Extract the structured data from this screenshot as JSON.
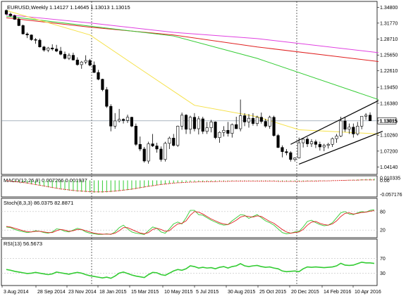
{
  "header": {
    "symbol": "EURUSD,Weekly",
    "ohlc": "1.14127 1.14645 1.13013 1.13015"
  },
  "colors": {
    "bull": "#000000",
    "bear": "#000000",
    "bull_fill": "#ffffff",
    "bear_fill": "#000000",
    "ma_yellow": "#f5e14a",
    "ma_green": "#33cc33",
    "ma_red": "#e02020",
    "ma_magenta": "#e040e0",
    "macd_hist": "#33cc33",
    "macd_signal": "#e02020",
    "stoch_main": "#33cc33",
    "stoch_signal": "#e02020",
    "rsi": "#33cc33",
    "grid": "#c0c0c0",
    "current_price_line": "#7a8a9a"
  },
  "chart_data": [
    {
      "type": "candlestick",
      "title": "EURUSD,Weekly",
      "x_tick_labels": [
        "3 Aug 2014",
        "28 Sep 2014",
        "23 Nov 2014",
        "18 Jan 2015",
        "15 Mar 2015",
        "10 May 2015",
        "5 Jul 2015",
        "30 Aug 2015",
        "25 Oct 2015",
        "20 Dec 2015",
        "14 Feb 2016",
        "10 Apr 2016"
      ],
      "y_tick_labels": [
        "1.34800",
        "1.31770",
        "1.28710",
        "1.25650",
        "1.22610",
        "1.19450",
        "1.16380",
        "1.13015",
        "1.10260",
        "1.07200",
        "1.04140"
      ],
      "current_price": 1.13015,
      "ylim": [
        1.03,
        1.354
      ],
      "candles": [
        [
          1.342,
          1.344,
          1.333,
          1.335
        ],
        [
          1.335,
          1.338,
          1.33,
          1.332
        ],
        [
          1.332,
          1.334,
          1.324,
          1.325
        ],
        [
          1.325,
          1.328,
          1.312,
          1.313
        ],
        [
          1.313,
          1.315,
          1.296,
          1.297
        ],
        [
          1.297,
          1.3,
          1.289,
          1.295
        ],
        [
          1.295,
          1.296,
          1.284,
          1.286
        ],
        [
          1.286,
          1.289,
          1.278,
          1.285
        ],
        [
          1.285,
          1.288,
          1.271,
          1.272
        ],
        [
          1.272,
          1.274,
          1.263,
          1.266
        ],
        [
          1.266,
          1.272,
          1.262,
          1.27
        ],
        [
          1.27,
          1.277,
          1.265,
          1.268
        ],
        [
          1.268,
          1.276,
          1.262,
          1.264
        ],
        [
          1.264,
          1.272,
          1.256,
          1.258
        ],
        [
          1.258,
          1.263,
          1.248,
          1.25
        ],
        [
          1.25,
          1.26,
          1.247,
          1.256
        ],
        [
          1.256,
          1.261,
          1.246,
          1.247
        ],
        [
          1.247,
          1.252,
          1.236,
          1.238
        ],
        [
          1.238,
          1.245,
          1.23,
          1.243
        ],
        [
          1.243,
          1.256,
          1.239,
          1.246
        ],
        [
          1.246,
          1.249,
          1.235,
          1.237
        ],
        [
          1.237,
          1.244,
          1.222,
          1.223
        ],
        [
          1.223,
          1.228,
          1.208,
          1.21
        ],
        [
          1.21,
          1.211,
          1.187,
          1.19
        ],
        [
          1.19,
          1.195,
          1.155,
          1.158
        ],
        [
          1.158,
          1.162,
          1.11,
          1.12
        ],
        [
          1.12,
          1.145,
          1.115,
          1.13
        ],
        [
          1.13,
          1.153,
          1.127,
          1.133
        ],
        [
          1.133,
          1.135,
          1.125,
          1.131
        ],
        [
          1.131,
          1.142,
          1.126,
          1.137
        ],
        [
          1.137,
          1.138,
          1.118,
          1.12
        ],
        [
          1.12,
          1.125,
          1.082,
          1.085
        ],
        [
          1.085,
          1.1,
          1.072,
          1.076
        ],
        [
          1.076,
          1.08,
          1.05,
          1.053
        ],
        [
          1.053,
          1.09,
          1.048,
          1.086
        ],
        [
          1.086,
          1.105,
          1.08,
          1.082
        ],
        [
          1.082,
          1.088,
          1.069,
          1.076
        ],
        [
          1.076,
          1.081,
          1.052,
          1.056
        ],
        [
          1.056,
          1.09,
          1.052,
          1.087
        ],
        [
          1.087,
          1.1,
          1.076,
          1.097
        ],
        [
          1.097,
          1.105,
          1.081,
          1.083
        ],
        [
          1.083,
          1.121,
          1.08,
          1.12
        ],
        [
          1.12,
          1.146,
          1.113,
          1.141
        ],
        [
          1.141,
          1.143,
          1.105,
          1.114
        ],
        [
          1.114,
          1.14,
          1.105,
          1.137
        ],
        [
          1.137,
          1.145,
          1.11,
          1.115
        ],
        [
          1.115,
          1.139,
          1.104,
          1.134
        ],
        [
          1.134,
          1.138,
          1.105,
          1.11
        ],
        [
          1.11,
          1.128,
          1.105,
          1.117
        ],
        [
          1.117,
          1.132,
          1.108,
          1.128
        ],
        [
          1.128,
          1.129,
          1.095,
          1.098
        ],
        [
          1.098,
          1.11,
          1.088,
          1.108
        ],
        [
          1.108,
          1.12,
          1.1,
          1.112
        ],
        [
          1.112,
          1.128,
          1.1,
          1.106
        ],
        [
          1.106,
          1.125,
          1.098,
          1.123
        ],
        [
          1.123,
          1.138,
          1.115,
          1.115
        ],
        [
          1.115,
          1.171,
          1.11,
          1.14
        ],
        [
          1.14,
          1.145,
          1.12,
          1.128
        ],
        [
          1.128,
          1.143,
          1.117,
          1.135
        ],
        [
          1.135,
          1.145,
          1.121,
          1.125
        ],
        [
          1.125,
          1.14,
          1.12,
          1.137
        ],
        [
          1.137,
          1.146,
          1.125,
          1.129
        ],
        [
          1.129,
          1.134,
          1.117,
          1.12
        ],
        [
          1.12,
          1.14,
          1.115,
          1.137
        ],
        [
          1.137,
          1.14,
          1.1,
          1.102
        ],
        [
          1.102,
          1.105,
          1.078,
          1.079
        ],
        [
          1.079,
          1.083,
          1.06,
          1.071
        ],
        [
          1.071,
          1.076,
          1.064,
          1.069
        ],
        [
          1.069,
          1.072,
          1.052,
          1.056
        ],
        [
          1.056,
          1.06,
          1.052,
          1.059
        ],
        [
          1.059,
          1.098,
          1.058,
          1.088
        ],
        [
          1.088,
          1.096,
          1.079,
          1.095
        ],
        [
          1.095,
          1.099,
          1.08,
          1.086
        ],
        [
          1.086,
          1.095,
          1.08,
          1.09
        ],
        [
          1.09,
          1.094,
          1.078,
          1.085
        ],
        [
          1.085,
          1.09,
          1.073,
          1.08
        ],
        [
          1.08,
          1.086,
          1.072,
          1.083
        ],
        [
          1.083,
          1.088,
          1.077,
          1.085
        ],
        [
          1.085,
          1.098,
          1.08,
          1.096
        ],
        [
          1.096,
          1.105,
          1.088,
          1.101
        ],
        [
          1.101,
          1.138,
          1.099,
          1.13
        ],
        [
          1.13,
          1.138,
          1.109,
          1.114
        ],
        [
          1.114,
          1.125,
          1.105,
          1.118
        ],
        [
          1.118,
          1.125,
          1.098,
          1.105
        ],
        [
          1.105,
          1.128,
          1.102,
          1.12
        ],
        [
          1.12,
          1.138,
          1.114,
          1.139
        ],
        [
          1.139,
          1.145,
          1.132,
          1.141
        ],
        [
          1.141,
          1.1465,
          1.1301,
          1.1302
        ]
      ],
      "moving_averages": [
        {
          "color": "ma_magenta",
          "points": [
            [
              0,
              1.334
            ],
            [
              20,
              1.318
            ],
            [
              40,
              1.3
            ],
            [
              60,
              1.288
            ],
            [
              89,
              1.261
            ]
          ]
        },
        {
          "color": "ma_red",
          "points": [
            [
              0,
              1.328
            ],
            [
              20,
              1.31
            ],
            [
              40,
              1.295
            ],
            [
              60,
              1.272
            ],
            [
              89,
              1.244
            ]
          ]
        },
        {
          "color": "ma_green",
          "points": [
            [
              0,
              1.331
            ],
            [
              20,
              1.312
            ],
            [
              40,
              1.293
            ],
            [
              60,
              1.25
            ],
            [
              89,
              1.171
            ]
          ]
        },
        {
          "color": "ma_yellow",
          "points": [
            [
              0,
              1.342
            ],
            [
              20,
              1.295
            ],
            [
              32,
              1.23
            ],
            [
              45,
              1.16
            ],
            [
              60,
              1.138
            ],
            [
              70,
              1.113
            ],
            [
              89,
              1.105
            ]
          ]
        }
      ],
      "channel_lines": [
        {
          "points": [
            [
              68,
              1.085
            ],
            [
              89,
              1.169
            ]
          ]
        },
        {
          "points": [
            [
              70,
              1.047
            ],
            [
              90,
              1.11
            ]
          ]
        }
      ]
    },
    {
      "type": "bar",
      "title": "MACD(12,26,9) 0.007266 0.001937",
      "y_tick_labels": [
        "0.010335",
        "0.00",
        "-0.057176"
      ],
      "ylim": [
        -0.062,
        0.013
      ],
      "histogram": [
        -0.002,
        -0.004,
        -0.006,
        -0.008,
        -0.01,
        -0.013,
        -0.016,
        -0.019,
        -0.022,
        -0.025,
        -0.028,
        -0.031,
        -0.034,
        -0.037,
        -0.04,
        -0.042,
        -0.044,
        -0.046,
        -0.047,
        -0.048,
        -0.049,
        -0.05,
        -0.05,
        -0.05,
        -0.049,
        -0.048,
        -0.046,
        -0.044,
        -0.042,
        -0.04,
        -0.038,
        -0.035,
        -0.032,
        -0.029,
        -0.026,
        -0.023,
        -0.02,
        -0.018,
        -0.016,
        -0.014,
        -0.012,
        -0.01,
        -0.009,
        -0.008,
        -0.007,
        -0.006,
        -0.006,
        -0.006,
        -0.005,
        -0.005,
        -0.005,
        -0.004,
        -0.004,
        -0.003,
        -0.003,
        -0.002,
        -0.002,
        -0.002,
        -0.002,
        -0.002,
        -0.002,
        -0.002,
        -0.003,
        -0.003,
        -0.003,
        -0.003,
        -0.004,
        -0.004,
        -0.005,
        -0.005,
        -0.005,
        -0.004,
        -0.004,
        -0.003,
        -0.003,
        -0.002,
        -0.002,
        -0.001,
        -0.001,
        0.0,
        0.0,
        0.001,
        0.002,
        0.003,
        0.004,
        0.005,
        0.006,
        0.007,
        0.0073
      ],
      "signal": [
        -0.001,
        -0.003,
        -0.005,
        -0.007,
        -0.009,
        -0.011,
        -0.014,
        -0.017,
        -0.02,
        -0.023,
        -0.026,
        -0.029,
        -0.032,
        -0.035,
        -0.037,
        -0.039,
        -0.041,
        -0.043,
        -0.044,
        -0.045,
        -0.046,
        -0.047,
        -0.047,
        -0.047,
        -0.046,
        -0.045,
        -0.044,
        -0.042,
        -0.04,
        -0.038,
        -0.036,
        -0.033,
        -0.03,
        -0.027,
        -0.024,
        -0.022,
        -0.019,
        -0.017,
        -0.015,
        -0.013,
        -0.011,
        -0.01,
        -0.009,
        -0.008,
        -0.007,
        -0.007,
        -0.006,
        -0.006,
        -0.005,
        -0.005,
        -0.005,
        -0.004,
        -0.004,
        -0.004,
        -0.003,
        -0.003,
        -0.003,
        -0.003,
        -0.003,
        -0.003,
        -0.003,
        -0.003,
        -0.003,
        -0.003,
        -0.003,
        -0.004,
        -0.004,
        -0.004,
        -0.004,
        -0.004,
        -0.004,
        -0.004,
        -0.003,
        -0.003,
        -0.003,
        -0.002,
        -0.002,
        -0.002,
        -0.001,
        -0.001,
        0.0,
        0.0,
        0.001,
        0.001,
        0.001,
        0.002,
        0.002,
        0.002,
        0.0019
      ]
    },
    {
      "type": "line",
      "title": "Stoch(8,3,3) 86.0375 82.8871",
      "y_tick_labels": [
        "80",
        "20"
      ],
      "ylim": [
        0,
        100
      ],
      "series": [
        {
          "color": "stoch_main",
          "values": [
            30,
            28,
            22,
            18,
            15,
            12,
            14,
            18,
            16,
            12,
            10,
            14,
            24,
            22,
            16,
            14,
            20,
            26,
            22,
            14,
            10,
            8,
            6,
            6,
            8,
            6,
            14,
            28,
            36,
            24,
            14,
            10,
            8,
            6,
            18,
            30,
            26,
            14,
            10,
            24,
            40,
            46,
            40,
            60,
            84,
            84,
            70,
            68,
            60,
            52,
            46,
            40,
            36,
            38,
            50,
            60,
            70,
            68,
            58,
            64,
            70,
            60,
            50,
            44,
            36,
            24,
            12,
            8,
            10,
            14,
            16,
            30,
            48,
            52,
            44,
            38,
            34,
            36,
            44,
            60,
            76,
            80,
            72,
            70,
            76,
            80,
            78,
            84,
            86
          ]
        },
        {
          "color": "stoch_signal",
          "values": [
            32,
            30,
            26,
            22,
            18,
            15,
            14,
            16,
            16,
            14,
            12,
            12,
            18,
            22,
            20,
            16,
            18,
            22,
            22,
            18,
            14,
            10,
            8,
            7,
            7,
            7,
            10,
            18,
            28,
            28,
            22,
            16,
            11,
            8,
            12,
            22,
            26,
            22,
            16,
            18,
            30,
            40,
            42,
            50,
            68,
            80,
            78,
            72,
            64,
            56,
            50,
            44,
            40,
            38,
            44,
            52,
            62,
            66,
            64,
            62,
            66,
            64,
            56,
            48,
            42,
            32,
            22,
            14,
            10,
            12,
            14,
            22,
            36,
            46,
            48,
            42,
            38,
            36,
            40,
            50,
            64,
            74,
            76,
            72,
            74,
            77,
            78,
            81,
            82.9
          ]
        }
      ]
    },
    {
      "type": "line",
      "title": "RSI(13) 56.5673",
      "y_tick_labels": [
        "70",
        "30"
      ],
      "ylim": [
        0,
        100
      ],
      "series": [
        {
          "color": "rsi",
          "values": [
            40,
            38,
            35,
            33,
            31,
            29,
            30,
            32,
            30,
            28,
            26,
            28,
            33,
            31,
            29,
            27,
            30,
            32,
            30,
            26,
            23,
            21,
            19,
            17,
            19,
            16,
            22,
            30,
            33,
            29,
            25,
            22,
            20,
            18,
            26,
            32,
            31,
            26,
            24,
            30,
            36,
            40,
            38,
            42,
            50,
            48,
            44,
            46,
            44,
            45,
            42,
            46,
            48,
            44,
            48,
            50,
            56,
            50,
            48,
            50,
            51,
            48,
            46,
            47,
            44,
            42,
            36,
            34,
            35,
            36,
            34,
            42,
            47,
            46,
            47,
            46,
            45,
            46,
            47,
            50,
            57,
            52,
            51,
            52,
            56,
            60,
            58,
            58,
            56.6
          ]
        }
      ]
    }
  ],
  "panels": {
    "macd_label": "MACD(12,26,9) 0.007266 0.001937",
    "stoch_label": "Stoch(8,3,3) 86.0375 82.8871",
    "rsi_label": "RSI(13) 56.5673"
  }
}
